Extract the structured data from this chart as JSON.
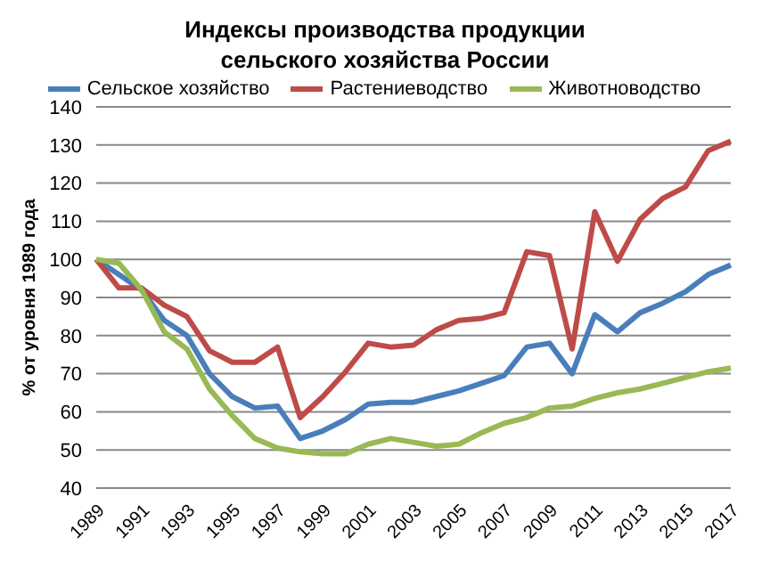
{
  "chart_data": {
    "type": "line",
    "title": "Индексы производства продукции\nсельского хозяйства России",
    "ylabel": "% от уровня  1989 года",
    "categories": [
      "1989",
      null,
      "1991",
      null,
      "1993",
      null,
      "1995",
      null,
      "1997",
      null,
      "1999",
      null,
      "2001",
      null,
      "2003",
      null,
      "2005",
      null,
      "2007",
      null,
      "2009",
      null,
      "2011",
      null,
      "2013",
      null,
      "2015",
      null,
      "2017"
    ],
    "series": [
      {
        "name": "Сельское хозяйство",
        "color": "#4a7ebb",
        "values": [
          100,
          96,
          92,
          84,
          80,
          70,
          64,
          61,
          61.5,
          53,
          55,
          58,
          62,
          62.5,
          62.5,
          64,
          65.5,
          67.5,
          69.5,
          77,
          78,
          70,
          85.5,
          81,
          86,
          88.5,
          91.5,
          96,
          98.5
        ]
      },
      {
        "name": "Растениеводство",
        "color": "#be4b48",
        "values": [
          100,
          92.5,
          92.5,
          88,
          85,
          76,
          73,
          73,
          77,
          58.5,
          64,
          70.5,
          78,
          77,
          77.5,
          81.5,
          84,
          84.5,
          86,
          102,
          101,
          76.5,
          112.5,
          99.5,
          110.5,
          116,
          119,
          128.5,
          131
        ]
      },
      {
        "name": "Животноводство",
        "color": "#98b954",
        "values": [
          100,
          99,
          92,
          81,
          76.5,
          66,
          59,
          53,
          50.5,
          49.5,
          49,
          49,
          51.5,
          53,
          52,
          51,
          51.5,
          54.5,
          57,
          58.5,
          61,
          61.5,
          63.5,
          65,
          66,
          67.5,
          69,
          70.5,
          71.5
        ]
      }
    ],
    "ylim": [
      40,
      140
    ],
    "yticks": [
      40,
      50,
      60,
      70,
      80,
      90,
      100,
      110,
      120,
      130,
      140
    ],
    "grid": "y",
    "legend": "top",
    "marker": "none",
    "line_style": "solid"
  }
}
